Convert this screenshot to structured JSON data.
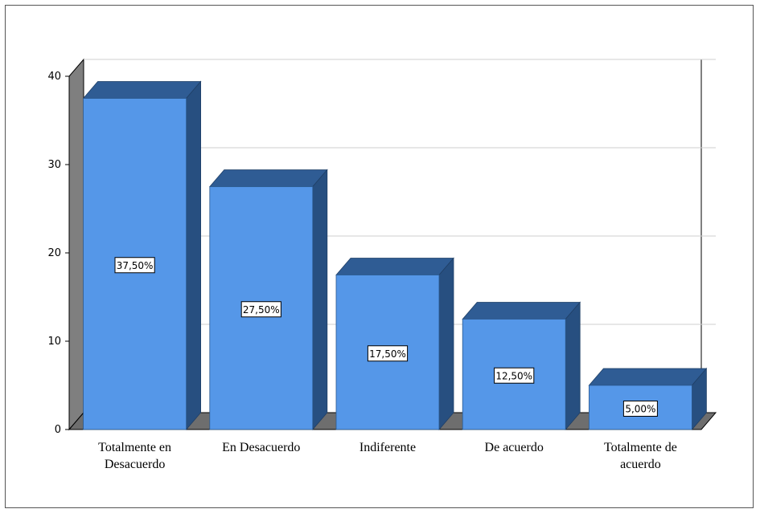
{
  "chart_data": {
    "type": "bar",
    "categories": [
      "Totalmente en Desacuerdo",
      "En Desacuerdo",
      "Indiferente",
      "De acuerdo",
      "Totalmente de acuerdo"
    ],
    "category_lines": [
      [
        "Totalmente en",
        "Desacuerdo"
      ],
      [
        "En Desacuerdo"
      ],
      [
        "Indiferente"
      ],
      [
        "De acuerdo"
      ],
      [
        "Totalmente de",
        "acuerdo"
      ]
    ],
    "values": [
      37.5,
      27.5,
      17.5,
      12.5,
      5.0
    ],
    "data_labels": [
      "37,50%",
      "27,50%",
      "17,50%",
      "12,50%",
      "5,00%"
    ],
    "yticks": [
      "0",
      "10",
      "20",
      "30",
      "40"
    ],
    "ylim": [
      0,
      40
    ],
    "grid": true,
    "colors": {
      "bar_front": "#5597e8",
      "bar_top": "#2f5c94",
      "bar_side": "#274f80",
      "wall": "#7f7f7f",
      "floor": "#6e6e6e",
      "grid": "#cfcfcf"
    }
  }
}
